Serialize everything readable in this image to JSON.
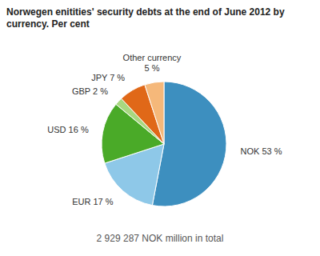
{
  "chart_data": {
    "type": "pie",
    "title": "Norwegen enitities' security debts at the end of June 2012 by\ncurrency. Per cent",
    "subtitle": "2 929 287 NOK million in total",
    "categories": [
      "NOK 53 %",
      "EUR 17 %",
      "USD 16 %",
      "GBP 2 %",
      "JPY 7 %",
      "Other currency\n5 %"
    ],
    "values": [
      53,
      17,
      16,
      2,
      7,
      5
    ],
    "colors": [
      "#3d8fbf",
      "#8ec8e8",
      "#4aaa28",
      "#a8d880",
      "#e06818",
      "#f5b87a"
    ]
  }
}
